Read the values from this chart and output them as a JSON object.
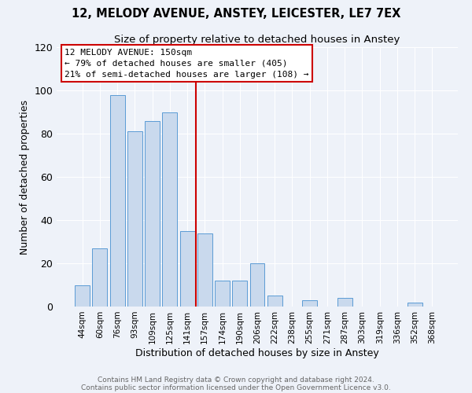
{
  "title": "12, MELODY AVENUE, ANSTEY, LEICESTER, LE7 7EX",
  "subtitle": "Size of property relative to detached houses in Anstey",
  "xlabel": "Distribution of detached houses by size in Anstey",
  "ylabel": "Number of detached properties",
  "bar_labels": [
    "44sqm",
    "60sqm",
    "76sqm",
    "93sqm",
    "109sqm",
    "125sqm",
    "141sqm",
    "157sqm",
    "174sqm",
    "190sqm",
    "206sqm",
    "222sqm",
    "238sqm",
    "255sqm",
    "271sqm",
    "287sqm",
    "303sqm",
    "319sqm",
    "336sqm",
    "352sqm",
    "368sqm"
  ],
  "bar_values": [
    10,
    27,
    98,
    81,
    86,
    90,
    35,
    34,
    12,
    12,
    20,
    5,
    0,
    3,
    0,
    4,
    0,
    0,
    0,
    2,
    0
  ],
  "bar_color": "#c9d9ed",
  "bar_edge_color": "#5b9bd5",
  "vline_color": "#cc0000",
  "ylim": [
    0,
    120
  ],
  "yticks": [
    0,
    20,
    40,
    60,
    80,
    100,
    120
  ],
  "annotation_title": "12 MELODY AVENUE: 150sqm",
  "annotation_line1": "← 79% of detached houses are smaller (405)",
  "annotation_line2": "21% of semi-detached houses are larger (108) →",
  "annotation_box_color": "#ffffff",
  "annotation_box_edge_color": "#cc0000",
  "footer_line1": "Contains HM Land Registry data © Crown copyright and database right 2024.",
  "footer_line2": "Contains public sector information licensed under the Open Government Licence v3.0.",
  "background_color": "#eef2f9",
  "title_fontsize": 10.5,
  "subtitle_fontsize": 9.5,
  "footer_color": "#666666"
}
